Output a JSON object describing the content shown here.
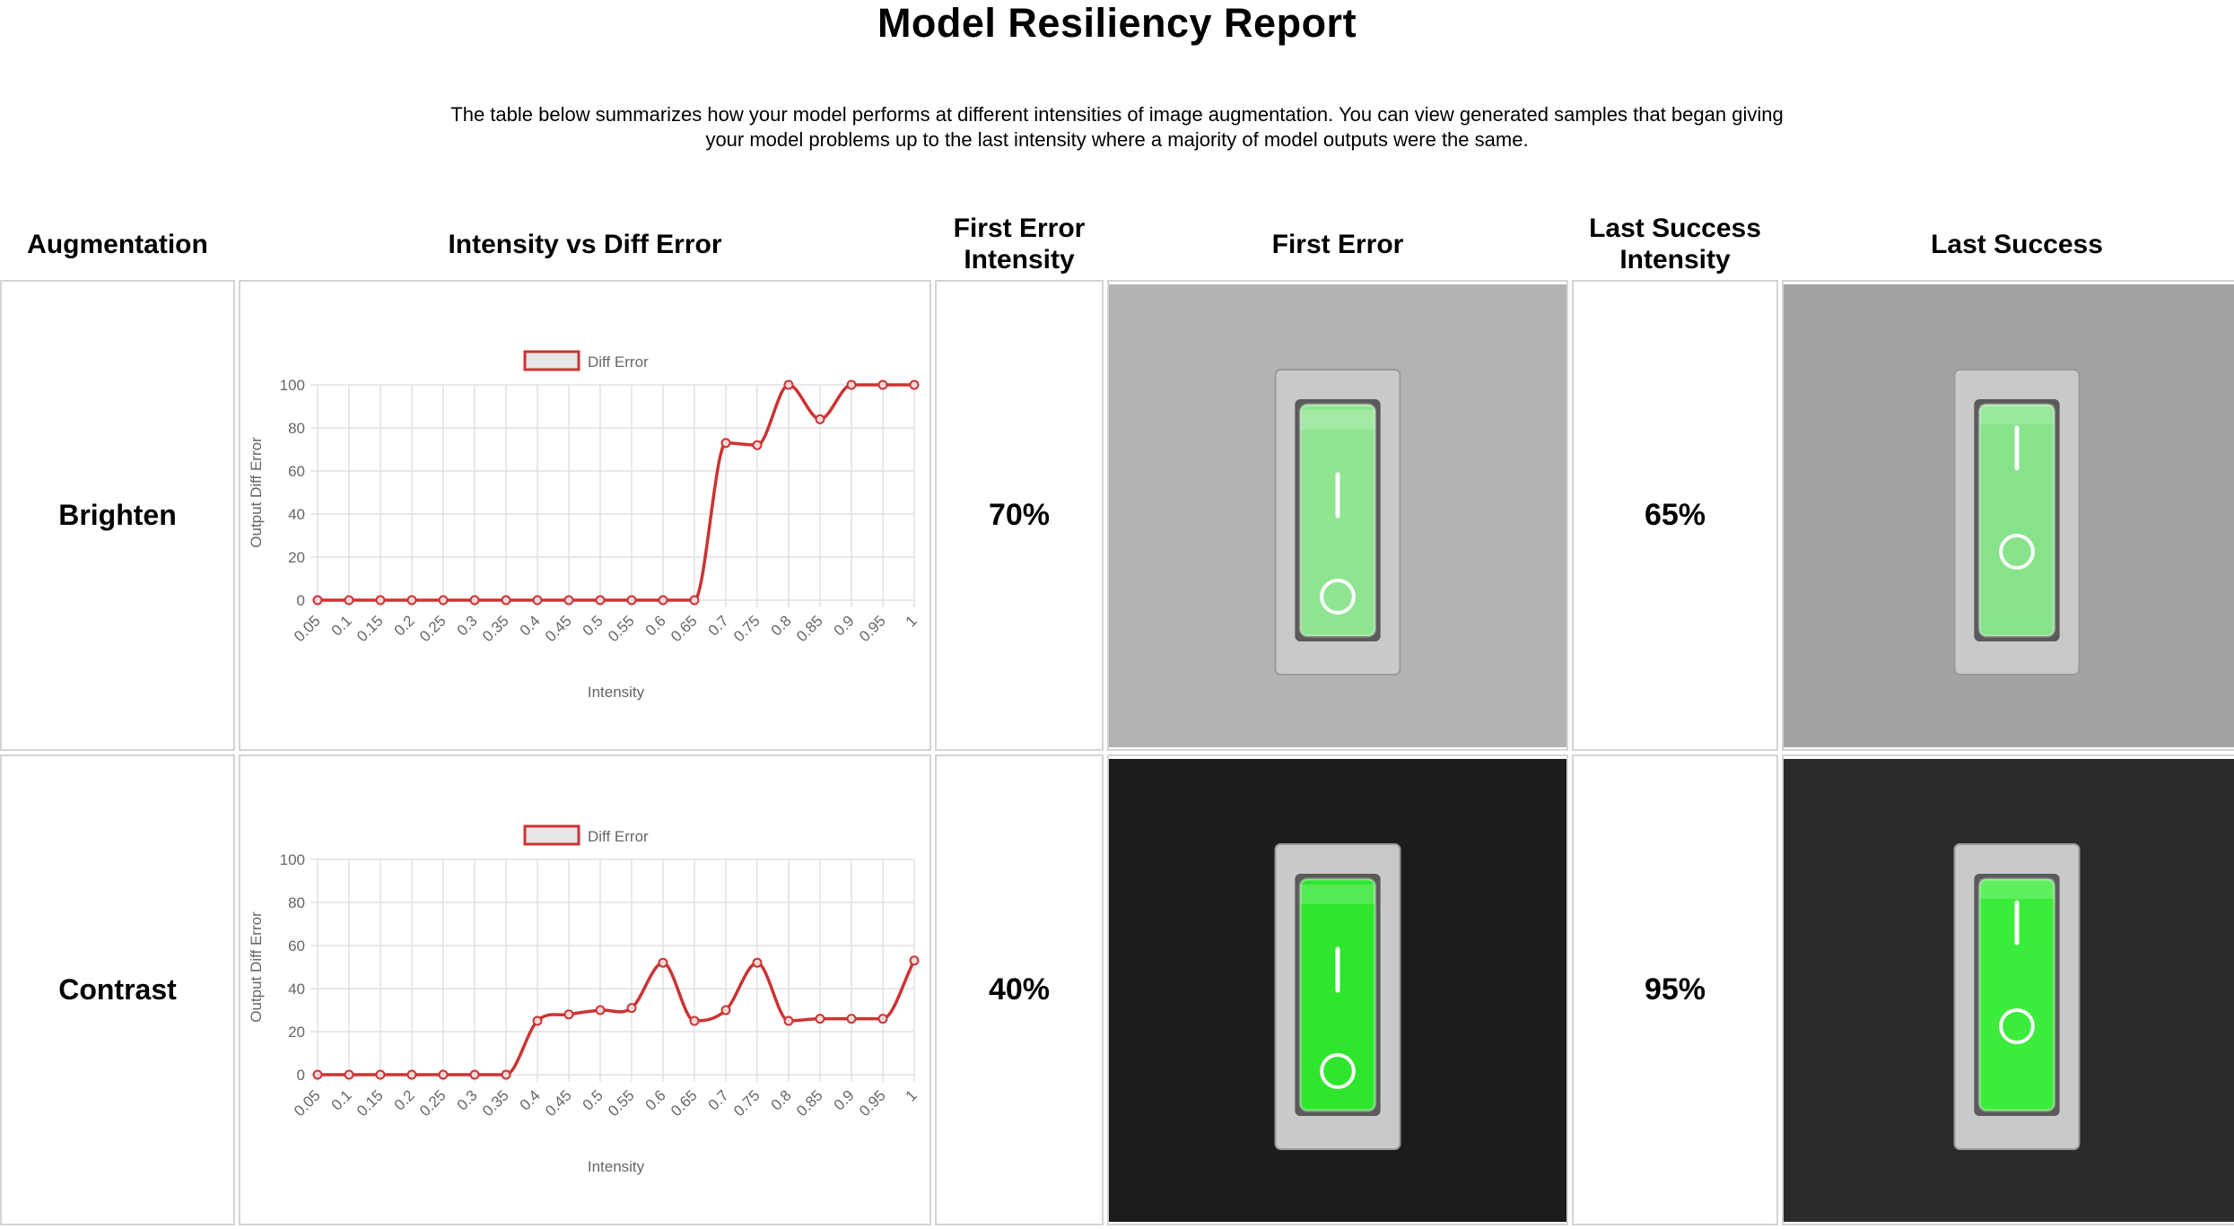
{
  "report": {
    "title": "Model Resiliency Report",
    "description": "The table below summarizes how your model performs at different intensities of image augmentation. You can view generated samples that began giving your model problems up to the last intensity where a majority of model outputs were the same."
  },
  "table": {
    "headers": {
      "augmentation": "Augmentation",
      "chart": "Intensity vs Diff Error",
      "first_error_intensity": "First Error Intensity",
      "first_error": "First Error",
      "last_success_intensity": "Last Success Intensity",
      "last_success": "Last Success"
    },
    "rows": [
      {
        "augmentation": "Brighten",
        "first_error_intensity": "70%",
        "last_success_intensity": "65%",
        "first_error_bg": "#b3b3b3",
        "last_success_bg": "#a3a3a3",
        "first_error_switch_color": "#8fe58f",
        "last_success_switch_color": "#86e38a"
      },
      {
        "augmentation": "Contrast",
        "first_error_intensity": "40%",
        "last_success_intensity": "95%",
        "first_error_bg": "#1c1c1c",
        "last_success_bg": "#2b2b2b",
        "first_error_switch_color": "#2ee62e",
        "last_success_switch_color": "#3cec3c"
      }
    ]
  },
  "chart_data": [
    {
      "type": "line",
      "legend": "Diff Error",
      "legend_position": "top",
      "xlabel": "Intensity",
      "ylabel": "Output Diff Error",
      "ylim": [
        0,
        100
      ],
      "yticks": [
        0,
        20,
        40,
        60,
        80,
        100
      ],
      "grid": true,
      "color": "#cc3333",
      "x": [
        "0.05",
        "0.1",
        "0.15",
        "0.2",
        "0.25",
        "0.3",
        "0.35",
        "0.4",
        "0.45",
        "0.5",
        "0.55",
        "0.6",
        "0.65",
        "0.7",
        "0.75",
        "0.8",
        "0.85",
        "0.9",
        "0.95",
        "1"
      ],
      "values": [
        0,
        0,
        0,
        0,
        0,
        0,
        0,
        0,
        0,
        0,
        0,
        0,
        0,
        73,
        72,
        100,
        84,
        100,
        100,
        100
      ]
    },
    {
      "type": "line",
      "legend": "Diff Error",
      "legend_position": "top",
      "xlabel": "Intensity",
      "ylabel": "Output Diff Error",
      "ylim": [
        0,
        100
      ],
      "yticks": [
        0,
        20,
        40,
        60,
        80,
        100
      ],
      "grid": true,
      "color": "#cc3333",
      "x": [
        "0.05",
        "0.1",
        "0.15",
        "0.2",
        "0.25",
        "0.3",
        "0.35",
        "0.4",
        "0.45",
        "0.5",
        "0.55",
        "0.6",
        "0.65",
        "0.7",
        "0.75",
        "0.8",
        "0.85",
        "0.9",
        "0.95",
        "1"
      ],
      "values": [
        0,
        0,
        0,
        0,
        0,
        0,
        0,
        25,
        28,
        30,
        31,
        52,
        25,
        30,
        52,
        25,
        26,
        26,
        26,
        53
      ]
    }
  ]
}
